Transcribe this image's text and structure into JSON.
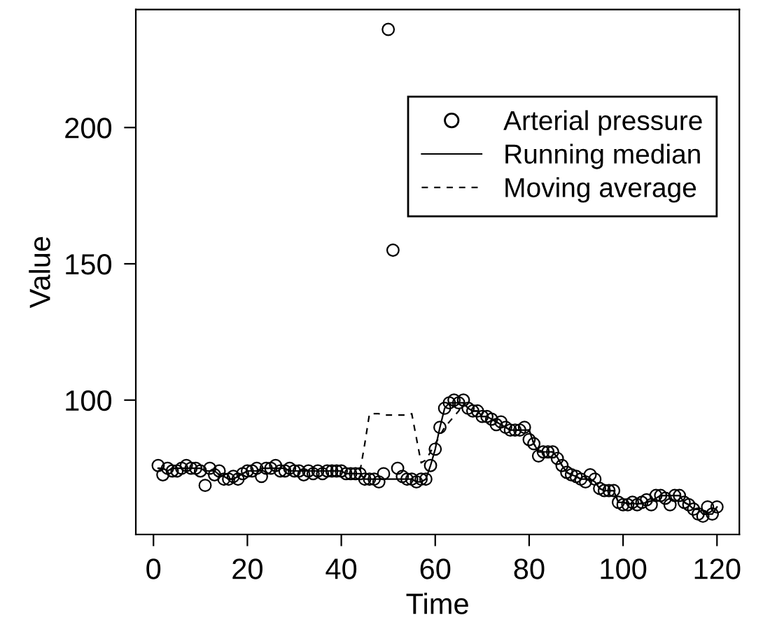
{
  "chart_data": {
    "type": "scatter",
    "xlabel": "Time",
    "ylabel": "Value",
    "x": [
      1,
      2,
      3,
      4,
      5,
      6,
      7,
      8,
      9,
      10,
      11,
      12,
      13,
      14,
      15,
      16,
      17,
      18,
      19,
      20,
      21,
      22,
      23,
      24,
      25,
      26,
      27,
      28,
      29,
      30,
      31,
      32,
      33,
      34,
      35,
      36,
      37,
      38,
      39,
      40,
      41,
      42,
      43,
      44,
      45,
      46,
      47,
      48,
      49,
      50,
      51,
      52,
      53,
      54,
      55,
      56,
      57,
      58,
      59,
      60,
      61,
      62,
      63,
      64,
      65,
      66,
      67,
      68,
      69,
      70,
      71,
      72,
      73,
      74,
      75,
      76,
      77,
      78,
      79,
      80,
      81,
      82,
      83,
      84,
      85,
      86,
      87,
      88,
      89,
      90,
      91,
      92,
      93,
      94,
      95,
      96,
      97,
      98,
      99,
      100,
      101,
      102,
      103,
      104,
      105,
      106,
      107,
      108,
      109,
      110,
      111,
      112,
      113,
      114,
      115,
      116,
      117,
      118,
      119,
      120
    ],
    "series": [
      {
        "name": "Arterial pressure",
        "marker": "circle",
        "color": "#000000",
        "values": [
          76,
          72.6,
          75,
          74,
          74,
          75,
          76,
          75,
          75,
          74,
          68.7,
          75,
          72.6,
          74,
          71,
          71,
          72,
          71,
          73,
          74,
          74,
          75,
          72,
          75,
          75,
          76,
          74,
          74,
          75,
          74,
          74,
          72.6,
          74,
          73,
          74,
          73,
          74,
          74,
          74,
          74,
          73,
          73,
          73,
          73,
          71,
          71,
          71,
          70,
          73,
          236,
          155,
          75,
          72,
          71,
          71,
          70,
          71,
          71,
          76,
          82,
          90,
          97,
          99,
          100,
          99,
          100,
          97,
          96,
          96,
          94,
          94,
          93,
          91,
          92,
          90,
          89,
          89,
          89,
          90,
          85.5,
          84,
          79.5,
          81,
          81,
          81,
          78.6,
          76,
          73.5,
          72.6,
          72,
          71,
          70,
          72.6,
          71,
          67.6,
          66.8,
          66.8,
          66.8,
          62.5,
          61.6,
          61.6,
          62.5,
          61.6,
          62.5,
          63.4,
          61.6,
          65,
          65,
          64,
          61.6,
          65,
          65,
          62.5,
          61.6,
          60,
          58.2,
          57.4,
          60.8,
          58.2,
          60.8
        ]
      },
      {
        "name": "Running median",
        "type": "line",
        "line_style": "solid",
        "color": "#000000",
        "values": [
          75,
          75,
          74,
          75,
          75,
          75,
          75,
          75,
          75,
          75,
          74,
          74,
          74,
          72.6,
          72,
          71,
          71,
          72,
          73,
          74,
          74,
          74,
          75,
          75,
          75,
          75,
          75,
          75,
          74,
          74,
          74,
          74,
          74,
          74,
          74,
          74,
          74,
          74,
          74,
          74,
          73,
          73,
          73,
          73,
          71,
          71,
          71,
          71,
          71,
          71,
          71,
          71,
          71,
          71,
          71,
          70,
          70,
          71,
          76,
          82,
          90,
          97,
          99,
          99,
          99,
          99,
          97,
          96,
          96,
          94,
          94,
          93,
          92,
          91,
          90,
          89,
          89,
          89,
          89,
          89,
          84,
          81,
          81,
          81,
          81,
          79,
          76,
          73.5,
          72.6,
          72,
          71,
          71,
          71,
          70,
          67.6,
          66.8,
          66.8,
          66.8,
          62.5,
          62.5,
          62,
          62,
          62,
          62,
          62.5,
          63,
          64,
          65,
          65,
          65,
          65,
          65,
          62.5,
          61.6,
          60,
          60,
          58.2,
          58.2,
          58.2,
          60.8
        ]
      },
      {
        "name": "Moving average",
        "type": "line",
        "line_style": "dashed",
        "color": "#000000",
        "values": [
          75,
          75,
          74,
          75,
          75,
          75,
          75,
          75,
          75,
          75,
          74,
          74,
          74,
          72.6,
          72,
          71,
          71,
          72,
          73,
          74,
          74,
          74,
          75,
          75,
          75,
          75,
          75,
          75,
          74,
          74,
          74,
          74,
          74,
          74,
          74,
          74,
          74,
          74,
          74,
          74,
          73,
          73,
          73,
          74,
          84,
          95,
          95,
          95,
          94.5,
          94.5,
          94.5,
          94.5,
          94.5,
          94.5,
          95,
          86,
          77,
          78,
          81,
          84,
          87,
          90,
          92,
          94,
          96,
          99,
          97,
          96,
          96,
          94,
          94,
          93,
          92,
          91,
          90,
          89,
          89,
          89,
          89,
          89,
          84,
          81,
          81,
          81,
          81,
          79,
          76,
          73.5,
          72.6,
          72,
          71,
          71,
          71,
          70,
          67.6,
          66.8,
          66.8,
          66.8,
          62.5,
          62.5,
          62,
          62,
          62,
          62,
          62.5,
          63,
          64,
          65,
          65,
          65,
          65,
          65,
          62.5,
          61.6,
          60,
          60,
          58.2,
          58.2,
          58.2,
          60.8
        ]
      }
    ],
    "xlim": [
      -3.76,
      124.76
    ],
    "ylim": [
      50.7,
      243.3
    ],
    "xticks": [
      0,
      20,
      40,
      60,
      80,
      100,
      120
    ],
    "yticks": [
      100,
      150,
      200
    ],
    "grid": false,
    "legend": "top right"
  }
}
